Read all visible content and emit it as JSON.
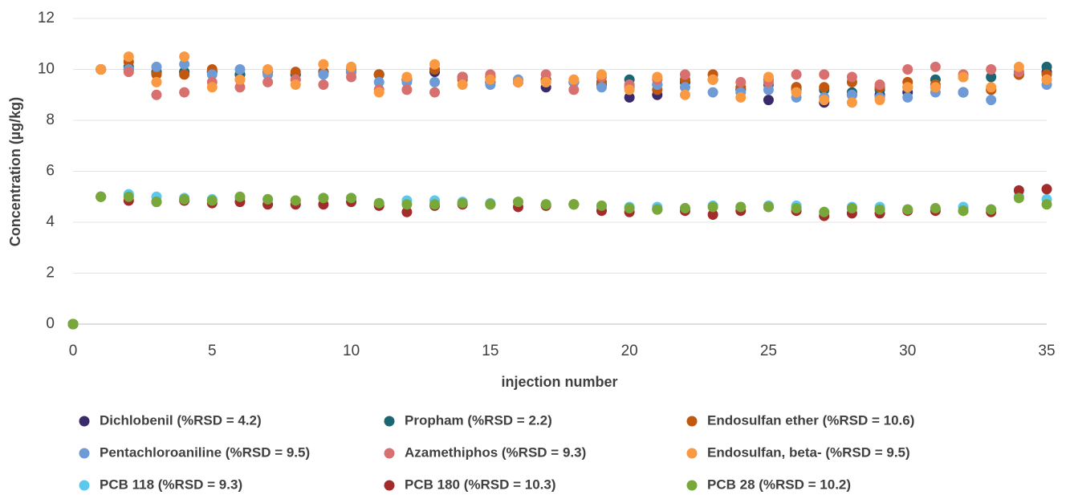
{
  "chart_data": {
    "type": "scatter",
    "x_label": "injection number",
    "y_label": "Concentration (µg/kg)",
    "xlim": [
      0,
      35
    ],
    "ylim": [
      0,
      12
    ],
    "xticks": [
      0,
      5,
      10,
      15,
      20,
      25,
      30,
      35
    ],
    "yticks": [
      0,
      2,
      4,
      6,
      8,
      10,
      12
    ],
    "grid": true,
    "legend": "bottom",
    "x": [
      0,
      1,
      2,
      3,
      4,
      5,
      6,
      7,
      8,
      9,
      10,
      11,
      12,
      13,
      14,
      15,
      16,
      17,
      18,
      19,
      20,
      21,
      22,
      23,
      24,
      25,
      26,
      27,
      28,
      29,
      30,
      31,
      32,
      33,
      34,
      35
    ],
    "series": [
      {
        "name": "Dichlobenil (%RSD = 4.2)",
        "color": "#3b2a6b",
        "values": [
          0,
          10,
          10.0,
          9.9,
          9.9,
          9.9,
          9.8,
          9.9,
          9.8,
          9.9,
          9.9,
          9.8,
          9.6,
          9.9,
          9.7,
          9.5,
          9.5,
          9.3,
          9.5,
          9.4,
          8.9,
          9.0,
          9.5,
          9.6,
          9.2,
          8.8,
          9.3,
          8.7,
          9.0,
          9.0,
          9.1,
          9.3,
          9.1,
          9.2,
          9.8,
          9.9
        ]
      },
      {
        "name": "Propham (%RSD = 2.2)",
        "color": "#1b6672",
        "values": [
          0,
          10,
          10.1,
          9.9,
          9.9,
          9.9,
          9.8,
          9.9,
          9.8,
          9.9,
          9.9,
          9.8,
          9.6,
          10.0,
          9.7,
          9.7,
          9.5,
          9.6,
          9.5,
          9.5,
          9.6,
          9.4,
          9.5,
          9.6,
          9.2,
          9.4,
          9.2,
          9.2,
          9.1,
          9.2,
          9.3,
          9.6,
          9.1,
          9.7,
          9.8,
          10.1
        ]
      },
      {
        "name": "Endosulfan ether (%RSD = 10.6)",
        "color": "#c0580f",
        "values": [
          0,
          10,
          10.3,
          9.8,
          9.8,
          10.0,
          9.6,
          9.9,
          9.9,
          9.9,
          10.0,
          9.8,
          9.6,
          10.0,
          9.6,
          9.7,
          9.5,
          9.6,
          9.5,
          9.5,
          9.3,
          9.2,
          9.6,
          9.8,
          9.3,
          9.6,
          9.3,
          9.3,
          9.5,
          9.3,
          9.5,
          9.4,
          9.7,
          9.2,
          9.8,
          9.8
        ]
      },
      {
        "name": "Pentachloroaniline (%RSD = 9.5)",
        "color": "#6e9bd6",
        "values": [
          0,
          10,
          10.0,
          10.1,
          10.2,
          9.8,
          10.0,
          9.8,
          9.6,
          9.8,
          9.9,
          9.5,
          9.5,
          9.5,
          9.7,
          9.4,
          9.6,
          9.5,
          9.5,
          9.3,
          9.3,
          9.4,
          9.3,
          9.1,
          9.1,
          9.2,
          8.9,
          8.9,
          9.0,
          8.9,
          8.9,
          9.1,
          9.1,
          8.8,
          9.9,
          9.4
        ]
      },
      {
        "name": "Azamethiphos (%RSD = 9.3)",
        "color": "#d87070",
        "values": [
          0,
          10,
          9.9,
          9.0,
          9.1,
          9.5,
          9.3,
          9.5,
          9.6,
          9.4,
          9.7,
          9.2,
          9.2,
          9.1,
          9.7,
          9.8,
          9.5,
          9.8,
          9.2,
          9.7,
          9.4,
          9.6,
          9.8,
          9.6,
          9.5,
          9.5,
          9.8,
          9.8,
          9.7,
          9.4,
          10.0,
          10.1,
          9.8,
          10.0,
          9.9,
          9.6
        ]
      },
      {
        "name": "Endosulfan, beta- (%RSD = 9.5)",
        "color": "#f99a43",
        "values": [
          0,
          10,
          10.5,
          9.5,
          10.5,
          9.3,
          9.6,
          10.0,
          9.4,
          10.2,
          10.1,
          9.1,
          9.7,
          10.2,
          9.4,
          9.6,
          9.5,
          9.5,
          9.6,
          9.8,
          9.2,
          9.7,
          9.0,
          9.6,
          8.9,
          9.7,
          9.1,
          8.8,
          8.7,
          8.8,
          9.3,
          9.3,
          9.7,
          9.3,
          10.1,
          9.6
        ]
      },
      {
        "name": "PCB 118 (%RSD = 9.3)",
        "color": "#5cc8ec",
        "values": [
          0,
          5,
          5.1,
          5.0,
          4.95,
          4.9,
          4.95,
          4.9,
          4.85,
          4.95,
          4.95,
          4.75,
          4.85,
          4.85,
          4.8,
          4.75,
          4.8,
          4.7,
          4.7,
          4.6,
          4.6,
          4.6,
          4.55,
          4.65,
          4.6,
          4.65,
          4.65,
          4.4,
          4.6,
          4.6,
          4.5,
          4.5,
          4.6,
          4.5,
          5.0,
          4.9
        ]
      },
      {
        "name": "PCB 180 (%RSD = 10.3)",
        "color": "#a32b2b",
        "values": [
          0,
          5,
          4.85,
          4.8,
          4.85,
          4.75,
          4.8,
          4.7,
          4.7,
          4.7,
          4.8,
          4.65,
          4.4,
          4.65,
          4.7,
          4.7,
          4.6,
          4.65,
          4.7,
          4.45,
          4.4,
          4.5,
          4.45,
          4.3,
          4.45,
          4.6,
          4.45,
          4.25,
          4.35,
          4.35,
          4.45,
          4.45,
          4.45,
          4.4,
          5.25,
          5.3
        ]
      },
      {
        "name": "PCB 28 (%RSD = 10.2)",
        "color": "#79a83a",
        "values": [
          0,
          5,
          5.0,
          4.8,
          4.9,
          4.85,
          5.0,
          4.9,
          4.85,
          4.95,
          4.95,
          4.75,
          4.7,
          4.7,
          4.75,
          4.7,
          4.8,
          4.7,
          4.7,
          4.65,
          4.55,
          4.5,
          4.55,
          4.6,
          4.6,
          4.6,
          4.55,
          4.4,
          4.55,
          4.5,
          4.5,
          4.55,
          4.45,
          4.5,
          4.95,
          4.7
        ]
      }
    ]
  }
}
